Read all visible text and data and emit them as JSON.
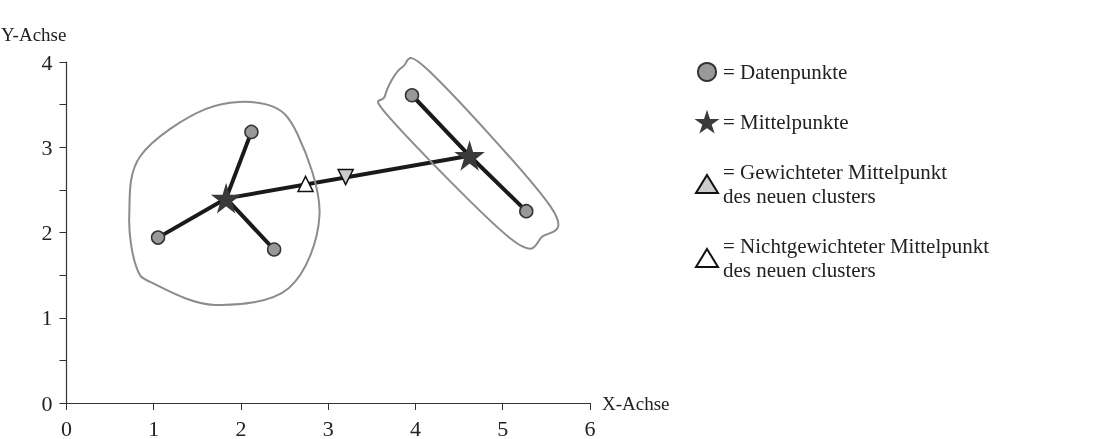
{
  "chart_data": {
    "type": "scatter",
    "xlabel": "X-Achse",
    "ylabel": "Y-Achse",
    "xlim": [
      0,
      6
    ],
    "xticks": [
      0,
      1,
      2,
      3,
      4,
      5,
      6
    ],
    "ylim": [
      0,
      4
    ],
    "yticks": [
      0,
      {
        "value": 0.5,
        "label": null
      },
      1,
      {
        "value": 1.5,
        "label": null
      },
      2,
      {
        "value": 2.5,
        "label": null
      },
      3,
      {
        "value": 3.5,
        "label": null
      },
      4
    ],
    "grid": false,
    "legend": "right",
    "series": [
      {
        "type": "line",
        "color": "#1a1a1a",
        "marker": "none",
        "x": [
          1.05,
          1.83
        ],
        "values": [
          1.94,
          2.4
        ]
      },
      {
        "type": "line",
        "color": "#1a1a1a",
        "marker": "none",
        "x": [
          2.12,
          1.83
        ],
        "values": [
          3.18,
          2.4
        ]
      },
      {
        "type": "line",
        "color": "#1a1a1a",
        "marker": "none",
        "x": [
          2.38,
          1.83
        ],
        "values": [
          1.8,
          2.4
        ]
      },
      {
        "type": "line",
        "color": "#1a1a1a",
        "marker": "none",
        "x": [
          3.96,
          4.62
        ],
        "values": [
          3.61,
          2.9
        ]
      },
      {
        "type": "line",
        "color": "#1a1a1a",
        "marker": "none",
        "x": [
          5.27,
          4.62
        ],
        "values": [
          2.25,
          2.9
        ]
      },
      {
        "type": "line",
        "color": "#1a1a1a",
        "marker": "none",
        "x": [
          1.83,
          4.62
        ],
        "values": [
          2.4,
          2.9
        ]
      },
      {
        "name": "= Datenpunkte",
        "color": "#999999",
        "marker": "circle",
        "x": [
          1.05,
          2.12,
          2.38,
          3.96,
          5.27
        ],
        "values": [
          1.94,
          3.18,
          1.8,
          3.61,
          2.25
        ]
      },
      {
        "name": "= Mittelpunkte",
        "color": "#3a3a3a",
        "marker": "star",
        "x": [
          1.83,
          4.62
        ],
        "values": [
          2.4,
          2.9
        ]
      },
      {
        "name": "= Gewichteter Mittelpunkt\ndes neuen clusters",
        "color": "#cccccc",
        "marker": "triangle-down",
        "x": [
          3.2
        ],
        "values": [
          2.65
        ]
      },
      {
        "name": "= Nichtgewichteter Mittelpunkt\ndes neuen clusters",
        "color": "#ffffff",
        "marker": "triangle",
        "x": [
          2.74
        ],
        "values": [
          2.57
        ]
      }
    ]
  }
}
